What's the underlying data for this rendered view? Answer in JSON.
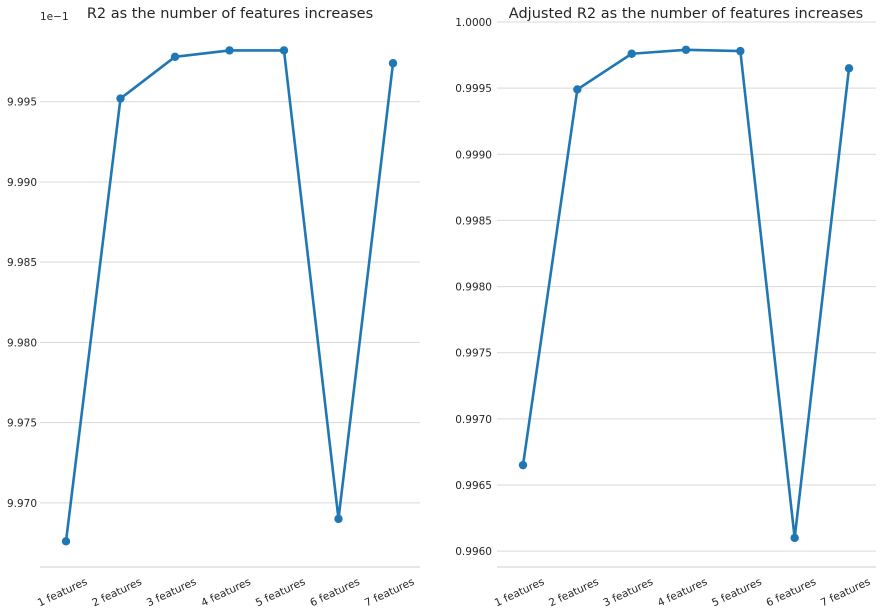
{
  "chart_data": [
    {
      "type": "line",
      "title": "R2 as the number of features increases",
      "axis_offset_label": "1e−1",
      "categories": [
        "1 features",
        "2 features",
        "3 features",
        "4 features",
        "5 features",
        "6 features",
        "7 features"
      ],
      "series": [
        {
          "values": [
            9.9676,
            9.9952,
            9.9978,
            9.9982,
            9.9982,
            9.969,
            9.9974
          ]
        }
      ],
      "yticks": [
        "9.970",
        "9.975",
        "9.980",
        "9.985",
        "9.990",
        "9.995"
      ],
      "ytick_values": [
        9.97,
        9.975,
        9.98,
        9.985,
        9.99,
        9.995
      ],
      "ylim": [
        9.966,
        9.99997
      ],
      "grid": "horizontal",
      "color": "#1f77b4"
    },
    {
      "type": "line",
      "title": "Adjusted R2 as the number of features increases",
      "categories": [
        "1 features",
        "2 features",
        "3 features",
        "4 features",
        "5 features",
        "6 features",
        "7 features"
      ],
      "series": [
        {
          "values": [
            0.99665,
            0.99949,
            0.99976,
            0.99979,
            0.99978,
            0.9961,
            0.99965
          ]
        }
      ],
      "yticks": [
        "0.9960",
        "0.9965",
        "0.9970",
        "0.9975",
        "0.9980",
        "0.9985",
        "0.9990",
        "0.9995",
        "1.0000"
      ],
      "ytick_values": [
        0.996,
        0.9965,
        0.997,
        0.9975,
        0.998,
        0.9985,
        0.999,
        0.9995,
        1.0
      ],
      "ylim": [
        0.99588,
        1.0
      ],
      "grid": "horizontal",
      "color": "#1f77b4"
    }
  ]
}
